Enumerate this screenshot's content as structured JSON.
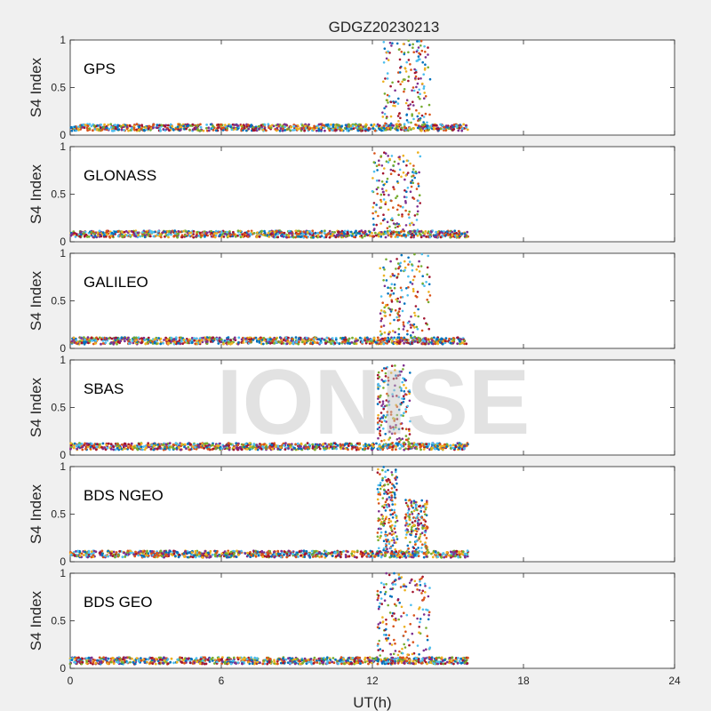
{
  "figure": {
    "title": "GDGZ20230213",
    "xlabel": "UT(h)",
    "ylabel": "S4 Index",
    "watermark": "IONISE"
  },
  "chart_data": [
    {
      "type": "scatter",
      "title": "GPS",
      "ylabel": "S4 Index",
      "xlim": [
        0,
        24
      ],
      "ylim": [
        0,
        1
      ],
      "xticks": [],
      "yticks": [
        "0",
        "0.5",
        "1"
      ],
      "grid": false,
      "baseline_range": [
        0,
        15.8
      ],
      "baseline_level": 0.08,
      "bursts": [
        {
          "x_range": [
            12.4,
            14.3
          ],
          "y_peak": 1.0
        }
      ],
      "series_colors": [
        "#0072BD",
        "#D95319",
        "#EDB120",
        "#7E2F8E",
        "#77AC30",
        "#4DBEEE",
        "#A2142F"
      ]
    },
    {
      "type": "scatter",
      "title": "GLONASS",
      "ylabel": "S4 Index",
      "xlim": [
        0,
        24
      ],
      "ylim": [
        0,
        1
      ],
      "xticks": [],
      "yticks": [
        "0",
        "0.5",
        "1"
      ],
      "grid": false,
      "baseline_range": [
        0,
        15.8
      ],
      "baseline_level": 0.08,
      "bursts": [
        {
          "x_range": [
            12.0,
            13.9
          ],
          "y_peak": 0.95
        }
      ],
      "series_colors": [
        "#0072BD",
        "#D95319",
        "#EDB120",
        "#7E2F8E",
        "#77AC30",
        "#4DBEEE",
        "#A2142F"
      ]
    },
    {
      "type": "scatter",
      "title": "GALILEO",
      "ylabel": "S4 Index",
      "xlim": [
        0,
        24
      ],
      "ylim": [
        0,
        1
      ],
      "xticks": [],
      "yticks": [
        "0",
        "0.5",
        "1"
      ],
      "grid": false,
      "baseline_range": [
        0,
        15.8
      ],
      "baseline_level": 0.08,
      "bursts": [
        {
          "x_range": [
            12.3,
            14.3
          ],
          "y_peak": 1.0
        }
      ],
      "series_colors": [
        "#0072BD",
        "#D95319",
        "#EDB120",
        "#7E2F8E",
        "#77AC30",
        "#4DBEEE",
        "#A2142F"
      ]
    },
    {
      "type": "scatter",
      "title": "SBAS",
      "ylabel": "S4 Index",
      "xlim": [
        0,
        24
      ],
      "ylim": [
        0,
        1
      ],
      "xticks": [],
      "yticks": [
        "0",
        "0.5",
        "1"
      ],
      "grid": false,
      "baseline_range": [
        0,
        15.8
      ],
      "baseline_level": 0.09,
      "bursts": [
        {
          "x_range": [
            12.2,
            13.5
          ],
          "y_peak": 0.95
        }
      ],
      "series_colors": [
        "#0072BD",
        "#D95319",
        "#EDB120",
        "#7E2F8E",
        "#77AC30",
        "#4DBEEE",
        "#A2142F"
      ]
    },
    {
      "type": "scatter",
      "title": "BDS NGEO",
      "ylabel": "S4 Index",
      "xlim": [
        0,
        24
      ],
      "ylim": [
        0,
        1
      ],
      "xticks": [],
      "yticks": [
        "0",
        "0.5",
        "1"
      ],
      "grid": false,
      "baseline_range": [
        0,
        15.8
      ],
      "baseline_level": 0.08,
      "bursts": [
        {
          "x_range": [
            12.2,
            13.0
          ],
          "y_peak": 1.0
        },
        {
          "x_range": [
            13.3,
            14.2
          ],
          "y_peak": 0.65
        }
      ],
      "series_colors": [
        "#0072BD",
        "#D95319",
        "#EDB120",
        "#7E2F8E",
        "#77AC30",
        "#4DBEEE",
        "#A2142F"
      ]
    },
    {
      "type": "scatter",
      "title": "BDS GEO",
      "ylabel": "S4 Index",
      "xlim": [
        0,
        24
      ],
      "ylim": [
        0,
        1
      ],
      "xticks": [
        "0",
        "6",
        "12",
        "18",
        "24"
      ],
      "yticks": [
        "0",
        "0.5",
        "1"
      ],
      "grid": false,
      "baseline_range": [
        0,
        15.8
      ],
      "baseline_level": 0.08,
      "bursts": [
        {
          "x_range": [
            12.2,
            14.3
          ],
          "y_peak": 1.0
        }
      ],
      "series_colors": [
        "#0072BD",
        "#D95319",
        "#EDB120",
        "#7E2F8E",
        "#77AC30",
        "#4DBEEE",
        "#A2142F"
      ]
    }
  ]
}
